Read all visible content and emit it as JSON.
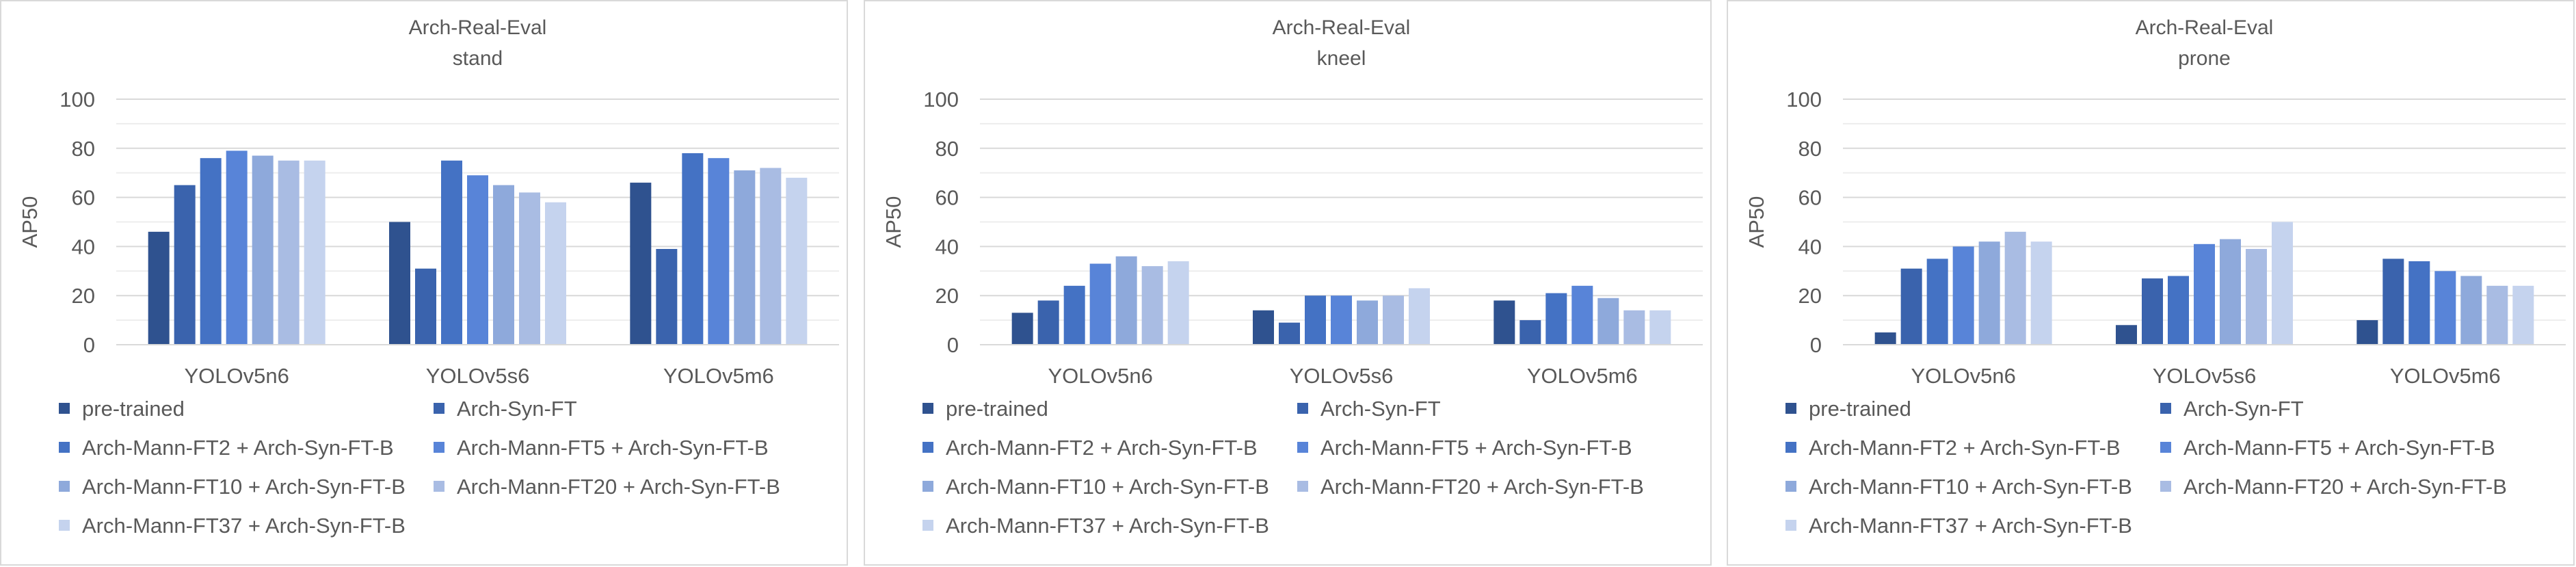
{
  "chart_data": [
    {
      "type": "bar",
      "title": "Arch-Real-Eval",
      "subtitle": "stand",
      "xlabel": "",
      "ylabel": "AP50",
      "ylim": [
        0,
        100
      ],
      "yticks": [
        0,
        20,
        40,
        60,
        80,
        100
      ],
      "gridlines": true,
      "legend_position": "bottom",
      "categories": [
        "YOLOv5n6",
        "YOLOv5s6",
        "YOLOv5m6"
      ],
      "series": [
        {
          "name": "pre-trained",
          "color": "#2f528f",
          "values": [
            46,
            50,
            66
          ]
        },
        {
          "name": "Arch-Syn-FT",
          "color": "#3a63ad",
          "values": [
            65,
            31,
            39
          ]
        },
        {
          "name": "Arch-Mann-FT2 + Arch-Syn-FT-B",
          "color": "#4472c4",
          "values": [
            76,
            75,
            78
          ]
        },
        {
          "name": "Arch-Mann-FT5 + Arch-Syn-FT-B",
          "color": "#5884d8",
          "values": [
            79,
            69,
            76
          ]
        },
        {
          "name": "Arch-Mann-FT10 + Arch-Syn-FT-B",
          "color": "#8ea9db",
          "values": [
            77,
            65,
            71
          ]
        },
        {
          "name": "Arch-Mann-FT20 + Arch-Syn-FT-B",
          "color": "#a9bce3",
          "values": [
            75,
            62,
            72
          ]
        },
        {
          "name": "Arch-Mann-FT37 + Arch-Syn-FT-B",
          "color": "#c5d3ee",
          "values": [
            75,
            58,
            68
          ]
        }
      ]
    },
    {
      "type": "bar",
      "title": "Arch-Real-Eval",
      "subtitle": "kneel",
      "xlabel": "",
      "ylabel": "AP50",
      "ylim": [
        0,
        100
      ],
      "yticks": [
        0,
        20,
        40,
        60,
        80,
        100
      ],
      "gridlines": true,
      "legend_position": "bottom",
      "categories": [
        "YOLOv5n6",
        "YOLOv5s6",
        "YOLOv5m6"
      ],
      "series": [
        {
          "name": "pre-trained",
          "color": "#2f528f",
          "values": [
            13,
            14,
            18
          ]
        },
        {
          "name": "Arch-Syn-FT",
          "color": "#3a63ad",
          "values": [
            18,
            9,
            10
          ]
        },
        {
          "name": "Arch-Mann-FT2 + Arch-Syn-FT-B",
          "color": "#4472c4",
          "values": [
            24,
            20,
            21
          ]
        },
        {
          "name": "Arch-Mann-FT5 + Arch-Syn-FT-B",
          "color": "#5884d8",
          "values": [
            33,
            20,
            24
          ]
        },
        {
          "name": "Arch-Mann-FT10 + Arch-Syn-FT-B",
          "color": "#8ea9db",
          "values": [
            36,
            18,
            19
          ]
        },
        {
          "name": "Arch-Mann-FT20 + Arch-Syn-FT-B",
          "color": "#a9bce3",
          "values": [
            32,
            20,
            14
          ]
        },
        {
          "name": "Arch-Mann-FT37 + Arch-Syn-FT-B",
          "color": "#c5d3ee",
          "values": [
            34,
            23,
            14
          ]
        }
      ]
    },
    {
      "type": "bar",
      "title": "Arch-Real-Eval",
      "subtitle": "prone",
      "xlabel": "",
      "ylabel": "AP50",
      "ylim": [
        0,
        100
      ],
      "yticks": [
        0,
        20,
        40,
        60,
        80,
        100
      ],
      "gridlines": true,
      "legend_position": "bottom",
      "categories": [
        "YOLOv5n6",
        "YOLOv5s6",
        "YOLOv5m6"
      ],
      "series": [
        {
          "name": "pre-trained",
          "color": "#2f528f",
          "values": [
            5,
            8,
            10
          ]
        },
        {
          "name": "Arch-Syn-FT",
          "color": "#3a63ad",
          "values": [
            31,
            27,
            35
          ]
        },
        {
          "name": "Arch-Mann-FT2 + Arch-Syn-FT-B",
          "color": "#4472c4",
          "values": [
            35,
            28,
            34
          ]
        },
        {
          "name": "Arch-Mann-FT5 + Arch-Syn-FT-B",
          "color": "#5884d8",
          "values": [
            40,
            41,
            30
          ]
        },
        {
          "name": "Arch-Mann-FT10 + Arch-Syn-FT-B",
          "color": "#8ea9db",
          "values": [
            42,
            43,
            28
          ]
        },
        {
          "name": "Arch-Mann-FT20 + Arch-Syn-FT-B",
          "color": "#a9bce3",
          "values": [
            46,
            39,
            24
          ]
        },
        {
          "name": "Arch-Mann-FT37 + Arch-Syn-FT-B",
          "color": "#c5d3ee",
          "values": [
            42,
            50,
            24
          ]
        }
      ]
    }
  ]
}
